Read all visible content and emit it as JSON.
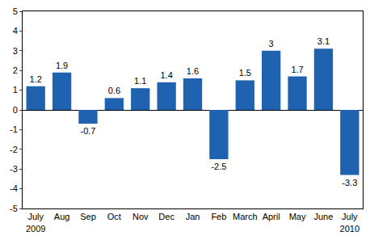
{
  "chart_data": {
    "type": "bar",
    "categories": [
      "July 2009",
      "Aug",
      "Sep",
      "Oct",
      "Nov",
      "Dec",
      "Jan",
      "Feb",
      "March",
      "April",
      "May",
      "June",
      "July 2010"
    ],
    "values": [
      1.2,
      1.9,
      -0.7,
      0.6,
      1.1,
      1.4,
      1.6,
      -2.5,
      1.5,
      3,
      1.7,
      3.1,
      -3.3
    ],
    "color": "#1f63b0",
    "ylim": [
      -5,
      5
    ],
    "yticks": [
      -5,
      -4,
      -3,
      -2,
      -1,
      0,
      1,
      2,
      3,
      4,
      5
    ],
    "grid": false,
    "data_labels": true
  }
}
